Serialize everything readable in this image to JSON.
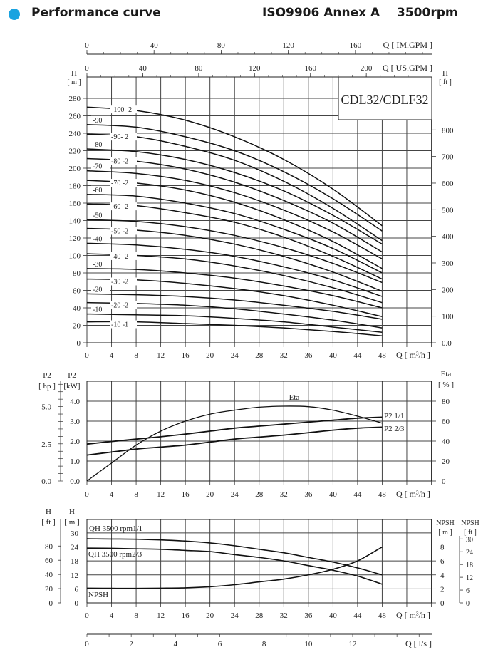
{
  "header": {
    "title": "Performance curve",
    "standard": "ISO9906 Annex A",
    "speed": "3500rpm",
    "accent_color": "#1aa3e0"
  },
  "chart_data": [
    {
      "type": "line",
      "title": "CDL32/CDLF32",
      "x_label": "Q [ m³/h ]",
      "x_ticks": [
        "0",
        "4",
        "8",
        "12",
        "16",
        "20",
        "24",
        "28",
        "32",
        "36",
        "40",
        "44",
        "48"
      ],
      "y_label": "H",
      "y_unit": "[ m ]",
      "y_ticks": [
        "0",
        "20",
        "40",
        "60",
        "80",
        "100",
        "120",
        "140",
        "160",
        "180",
        "200",
        "220",
        "240",
        "260",
        "280"
      ],
      "y2_label": "H",
      "y2_unit": "[ ft ]",
      "y2_ticks": [
        "0.0",
        "100",
        "200",
        "300",
        "400",
        "500",
        "600",
        "700",
        "800"
      ],
      "top_axes": [
        {
          "label": "Q [ IM.GPM ]",
          "ticks": [
            "0",
            "40",
            "80",
            "120",
            "160"
          ]
        },
        {
          "label": "Q [ US.GPM ]",
          "ticks": [
            "0",
            "40",
            "80",
            "120",
            "160",
            "200"
          ]
        }
      ],
      "x": [
        0,
        8,
        16,
        24,
        32,
        40,
        48
      ],
      "series": [
        {
          "name": "-100- 2",
          "values": [
            270,
            266,
            255,
            236,
            210,
            176,
            134
          ]
        },
        {
          "name": "-90",
          "values": [
            250,
            247,
            236,
            220,
            196,
            165,
            128
          ]
        },
        {
          "name": "-90- 2",
          "values": [
            239,
            236,
            225,
            209,
            185,
            154,
            117
          ]
        },
        {
          "name": "-80",
          "values": [
            222,
            219,
            210,
            195,
            174,
            146,
            113
          ]
        },
        {
          "name": "-80 -2",
          "values": [
            211,
            208,
            199,
            184,
            163,
            137,
            104
          ]
        },
        {
          "name": "-70",
          "values": [
            197,
            194,
            186,
            172,
            152,
            127,
            96
          ]
        },
        {
          "name": "-70 -2",
          "values": [
            186,
            183,
            175,
            161,
            141,
            116,
            85
          ]
        },
        {
          "name": "-60",
          "values": [
            170,
            168,
            160,
            148,
            130,
            108,
            80
          ]
        },
        {
          "name": "-60 -2",
          "values": [
            159,
            157,
            149,
            138,
            121,
            99,
            73
          ]
        },
        {
          "name": "-50",
          "values": [
            141,
            139,
            133,
            123,
            109,
            91,
            69
          ]
        },
        {
          "name": "-50 -2",
          "values": [
            131,
            129,
            123,
            113,
            99,
            81,
            59
          ]
        },
        {
          "name": "-40",
          "values": [
            114,
            112,
            107,
            99,
            87,
            72,
            53
          ]
        },
        {
          "name": "-40 -2",
          "values": [
            102,
            100,
            96,
            88,
            77,
            63,
            46
          ]
        },
        {
          "name": "-30",
          "values": [
            85,
            84,
            80,
            74,
            65,
            54,
            40
          ]
        },
        {
          "name": "-30 -2",
          "values": [
            73,
            72,
            68,
            62,
            54,
            43,
            30
          ]
        },
        {
          "name": "-20",
          "values": [
            56,
            55,
            53,
            49,
            43,
            36,
            27
          ]
        },
        {
          "name": "-20 -2",
          "values": [
            46,
            45,
            43,
            39,
            33,
            26,
            17
          ]
        },
        {
          "name": "-10",
          "values": [
            33,
            32,
            31,
            28,
            24,
            18,
            12
          ]
        },
        {
          "name": "-10 -1",
          "values": [
            24,
            24,
            22,
            20,
            17,
            13,
            8
          ]
        }
      ]
    },
    {
      "type": "line",
      "x_label": "Q [ m³/h ]",
      "x_ticks": [
        "0",
        "4",
        "8",
        "12",
        "16",
        "20",
        "24",
        "28",
        "32",
        "36",
        "40",
        "44",
        "48"
      ],
      "y_hp_label": "P2",
      "y_hp_unit": "[ hp ]",
      "y_hp_ticks": [
        "0.0",
        "2.5",
        "5.0"
      ],
      "y_label": "P2",
      "y_unit": "[kW]",
      "y_ticks": [
        "0.0",
        "1.0",
        "2.0",
        "3.0",
        "4.0"
      ],
      "y2_label": "Eta",
      "y2_unit": "[ % ]",
      "y2_ticks": [
        "0",
        "20",
        "40",
        "60",
        "80"
      ],
      "x": [
        0,
        4,
        8,
        12,
        16,
        20,
        24,
        28,
        32,
        36,
        40,
        44,
        48
      ],
      "series": [
        {
          "name": "Eta",
          "axis": "eta",
          "values": [
            0,
            18,
            36,
            50,
            60,
            67,
            71,
            74,
            75,
            74.5,
            71,
            65,
            58
          ]
        },
        {
          "name": "P2  1/1",
          "axis": "kw",
          "values": [
            1.85,
            1.98,
            2.1,
            2.22,
            2.35,
            2.5,
            2.65,
            2.75,
            2.85,
            2.95,
            3.05,
            3.15,
            3.2
          ]
        },
        {
          "name": "P2  2/3",
          "axis": "kw",
          "values": [
            1.3,
            1.45,
            1.6,
            1.7,
            1.8,
            1.95,
            2.1,
            2.2,
            2.3,
            2.42,
            2.55,
            2.65,
            2.7
          ]
        }
      ]
    },
    {
      "type": "line",
      "x_label": "Q [ m³/h ]",
      "x_ticks": [
        "0",
        "4",
        "8",
        "12",
        "16",
        "20",
        "24",
        "28",
        "32",
        "36",
        "40",
        "44",
        "48"
      ],
      "y_ft_label": "H",
      "y_ft_unit": "[ ft ]",
      "y_ft_ticks": [
        "0",
        "20",
        "40",
        "60",
        "80"
      ],
      "y_label": "H",
      "y_unit": "[ m ]",
      "y_ticks": [
        "0",
        "6",
        "12",
        "18",
        "24",
        "30"
      ],
      "y2_label": "NPSH",
      "y2_unit": "[ m ]",
      "y2_ticks": [
        "0",
        "2",
        "4",
        "6",
        "8"
      ],
      "y3_label": "NPSH",
      "y3_unit": "[ ft ]",
      "y3_ticks": [
        "0",
        "6",
        "12",
        "18",
        "24",
        "30"
      ],
      "ls_axis": {
        "label": "Q [ l/s ]",
        "ticks": [
          "0",
          "2",
          "4",
          "6",
          "8",
          "10",
          "12"
        ]
      },
      "x": [
        0,
        4,
        8,
        12,
        16,
        20,
        24,
        28,
        32,
        36,
        40,
        44,
        48
      ],
      "series": [
        {
          "name": "QH  3500 rpm1/1",
          "axis": "m",
          "values": [
            27.5,
            27.4,
            27.3,
            27,
            26.5,
            25.7,
            24.5,
            23,
            21.5,
            19.5,
            17.5,
            15,
            12
          ]
        },
        {
          "name": "QH  3500 rpm2/3",
          "axis": "m",
          "values": [
            23.5,
            23.4,
            23.2,
            23,
            22.5,
            22,
            20.7,
            19.5,
            18,
            16,
            14,
            11.5,
            8
          ]
        },
        {
          "name": "NPSH",
          "axis": "npsh",
          "values": [
            2.1,
            2.08,
            2.07,
            2.1,
            2.15,
            2.3,
            2.6,
            3,
            3.4,
            4,
            4.8,
            6,
            8
          ]
        }
      ]
    }
  ]
}
